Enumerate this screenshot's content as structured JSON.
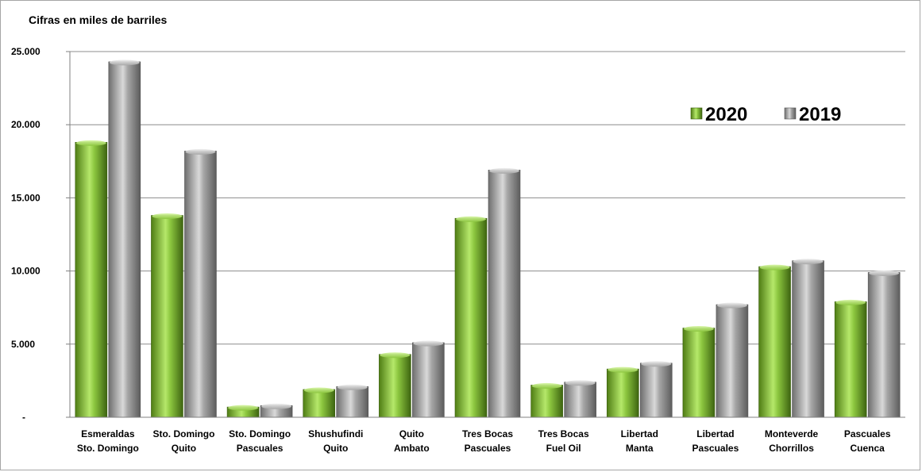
{
  "chart_data": {
    "type": "bar",
    "ylabel": "Cifras en miles de barriles",
    "ylim": [
      0,
      25000
    ],
    "yticks": [
      {
        "value": 0,
        "label": "-"
      },
      {
        "value": 5000,
        "label": "5.000"
      },
      {
        "value": 10000,
        "label": "10.000"
      },
      {
        "value": 15000,
        "label": "15.000"
      },
      {
        "value": 20000,
        "label": "20.000"
      },
      {
        "value": 25000,
        "label": "25.000"
      }
    ],
    "grid": true,
    "legend_position": "top-right",
    "categories": [
      [
        "Esmeraldas",
        "Sto. Domingo"
      ],
      [
        "Sto. Domingo",
        "Quito"
      ],
      [
        "Sto. Domingo",
        "Pascuales"
      ],
      [
        "Shushufindi",
        "Quito"
      ],
      [
        "Quito",
        "Ambato"
      ],
      [
        "Tres Bocas",
        "Pascuales"
      ],
      [
        "Tres Bocas",
        "Fuel Oil"
      ],
      [
        "Libertad",
        "Manta"
      ],
      [
        "Libertad",
        "Pascuales"
      ],
      [
        "Monteverde",
        "Chorrillos"
      ],
      [
        "Pascuales",
        "Cuenca"
      ]
    ],
    "series": [
      {
        "name": "2020",
        "color": "#8cc63f",
        "values": [
          18800,
          13800,
          700,
          1900,
          4300,
          13600,
          2200,
          3300,
          6100,
          10300,
          7900
        ]
      },
      {
        "name": "2019",
        "color": "#a6a6a6",
        "values": [
          24300,
          18200,
          800,
          2100,
          5100,
          16900,
          2400,
          3700,
          7700,
          10700,
          9900
        ]
      }
    ]
  }
}
